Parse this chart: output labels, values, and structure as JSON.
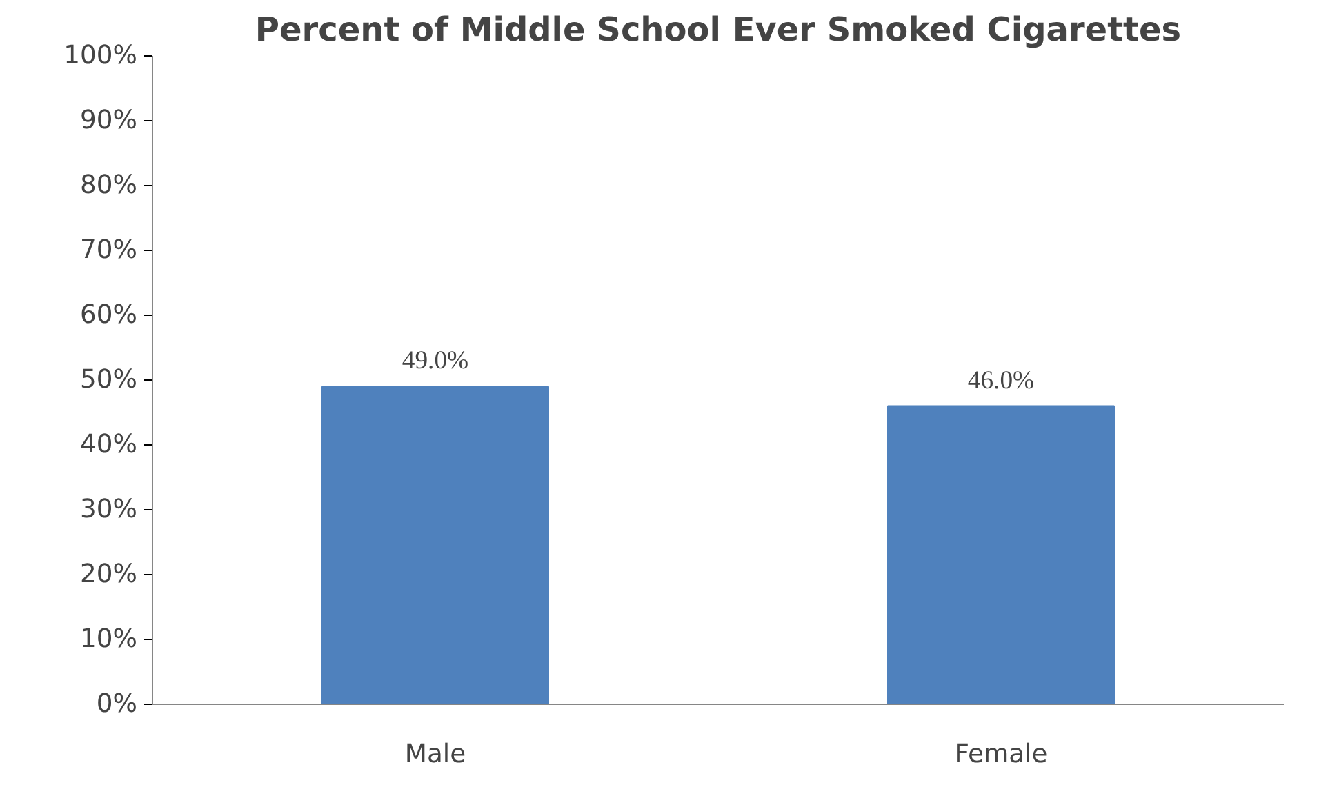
{
  "chart_data": {
    "type": "bar",
    "title": "Percent of Middle School Ever Smoked Cigarettes",
    "categories": [
      "Male",
      "Female"
    ],
    "values": [
      49,
      46
    ],
    "color": "#4f81bd",
    "value_labels": [
      "49.0%",
      "46.0%"
    ],
    "ylim": [
      0,
      100
    ],
    "yticks": [
      {
        "value": 0,
        "label": "0%"
      },
      {
        "value": 10,
        "label": "10%"
      },
      {
        "value": 20,
        "label": "20%"
      },
      {
        "value": 30,
        "label": "30%"
      },
      {
        "value": 40,
        "label": "40%"
      },
      {
        "value": 50,
        "label": "50%"
      },
      {
        "value": 60,
        "label": "60%"
      },
      {
        "value": 70,
        "label": "70%"
      },
      {
        "value": 80,
        "label": "80%"
      },
      {
        "value": 90,
        "label": "90%"
      },
      {
        "value": 100,
        "label": "100%"
      }
    ],
    "grid": false
  }
}
